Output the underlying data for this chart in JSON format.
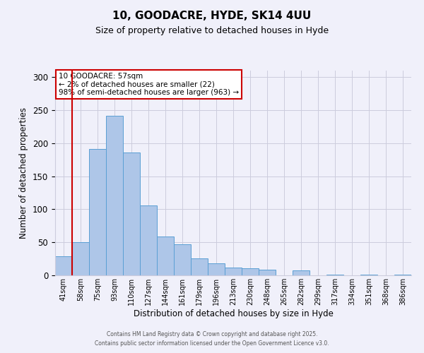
{
  "title": "10, GOODACRE, HYDE, SK14 4UU",
  "subtitle": "Size of property relative to detached houses in Hyde",
  "xlabel": "Distribution of detached houses by size in Hyde",
  "ylabel": "Number of detached properties",
  "bar_labels": [
    "41sqm",
    "58sqm",
    "75sqm",
    "93sqm",
    "110sqm",
    "127sqm",
    "144sqm",
    "161sqm",
    "179sqm",
    "196sqm",
    "213sqm",
    "230sqm",
    "248sqm",
    "265sqm",
    "282sqm",
    "299sqm",
    "317sqm",
    "334sqm",
    "351sqm",
    "368sqm",
    "386sqm"
  ],
  "bar_values": [
    29,
    50,
    191,
    242,
    186,
    106,
    59,
    47,
    26,
    18,
    12,
    11,
    9,
    0,
    7,
    0,
    1,
    0,
    1,
    0,
    1
  ],
  "bar_color": "#aec6e8",
  "bar_edge_color": "#5a9fd4",
  "vline_x": 1,
  "vline_color": "#cc0000",
  "ylim": [
    0,
    310
  ],
  "yticks": [
    0,
    50,
    100,
    150,
    200,
    250,
    300
  ],
  "annotation_title": "10 GOODACRE: 57sqm",
  "annotation_line1": "← 2% of detached houses are smaller (22)",
  "annotation_line2": "98% of semi-detached houses are larger (963) →",
  "annotation_box_color": "#cc0000",
  "footer1": "Contains HM Land Registry data © Crown copyright and database right 2025.",
  "footer2": "Contains public sector information licensed under the Open Government Licence v3.0.",
  "background_color": "#f0f0fa",
  "grid_color": "#ccccdd"
}
